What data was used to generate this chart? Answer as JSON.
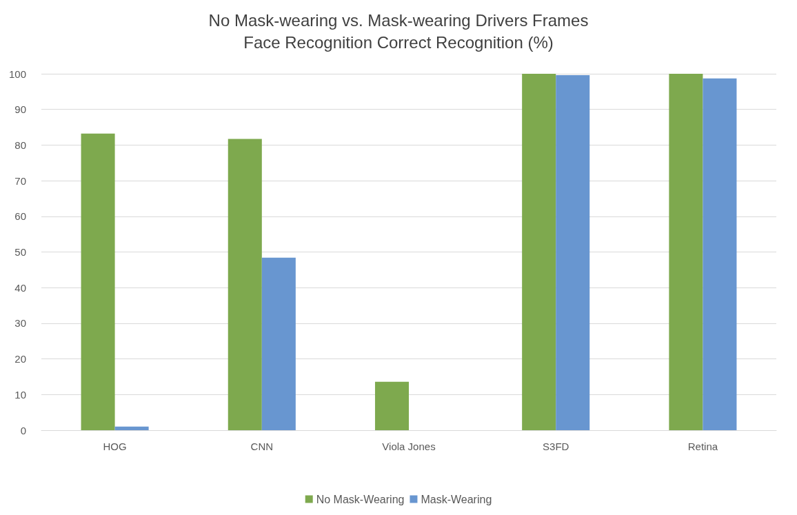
{
  "chart_data": {
    "type": "bar",
    "title": "No Mask-wearing vs. Mask-wearing Drivers Frames\nFace Recognition Correct Recognition (%)",
    "categories": [
      "HOG",
      "CNN",
      "Viola Jones",
      "S3FD",
      "Retina"
    ],
    "series": [
      {
        "name": "No Mask-Wearing",
        "color": "#7ea94e",
        "values": [
          83.2,
          81.7,
          13.6,
          100,
          100
        ]
      },
      {
        "name": "Mask-Wearing",
        "color": "#6896d0",
        "values": [
          1,
          48.4,
          0,
          99.6,
          98.7
        ]
      }
    ],
    "ylim": [
      0,
      100
    ],
    "yticks": [
      0,
      10,
      20,
      30,
      40,
      50,
      60,
      70,
      80,
      90,
      100
    ],
    "grid": "y",
    "legend": "bottom"
  }
}
